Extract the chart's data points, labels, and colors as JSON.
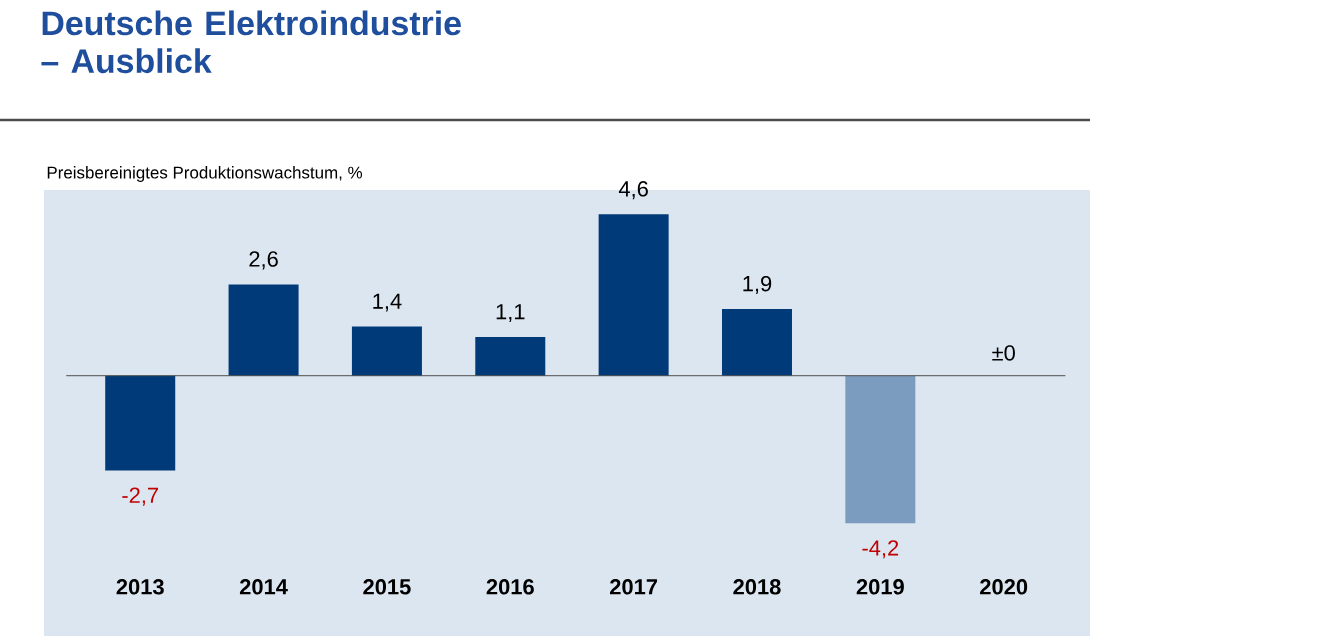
{
  "chart_data": {
    "type": "bar",
    "title": "Deutsche Elektroindustrie – Ausblick",
    "ylabel": "Preisbereinigtes Produktionswachstum,  %",
    "categories": [
      "2013",
      "2014",
      "2015",
      "2016",
      "2017",
      "2018",
      "2019",
      "2020"
    ],
    "values": [
      -2.7,
      2.6,
      1.4,
      1.1,
      4.6,
      1.9,
      -4.2,
      0
    ],
    "colors": [
      "#003a78",
      "#003a78",
      "#003a78",
      "#003a78",
      "#003a78",
      "#003a78",
      "#7b9bbf",
      "#003a78"
    ],
    "value_labels": [
      "-2,7",
      "2,6",
      "1,4",
      "1,1",
      "4,6",
      "1,9",
      "-4,2",
      "±0"
    ]
  }
}
